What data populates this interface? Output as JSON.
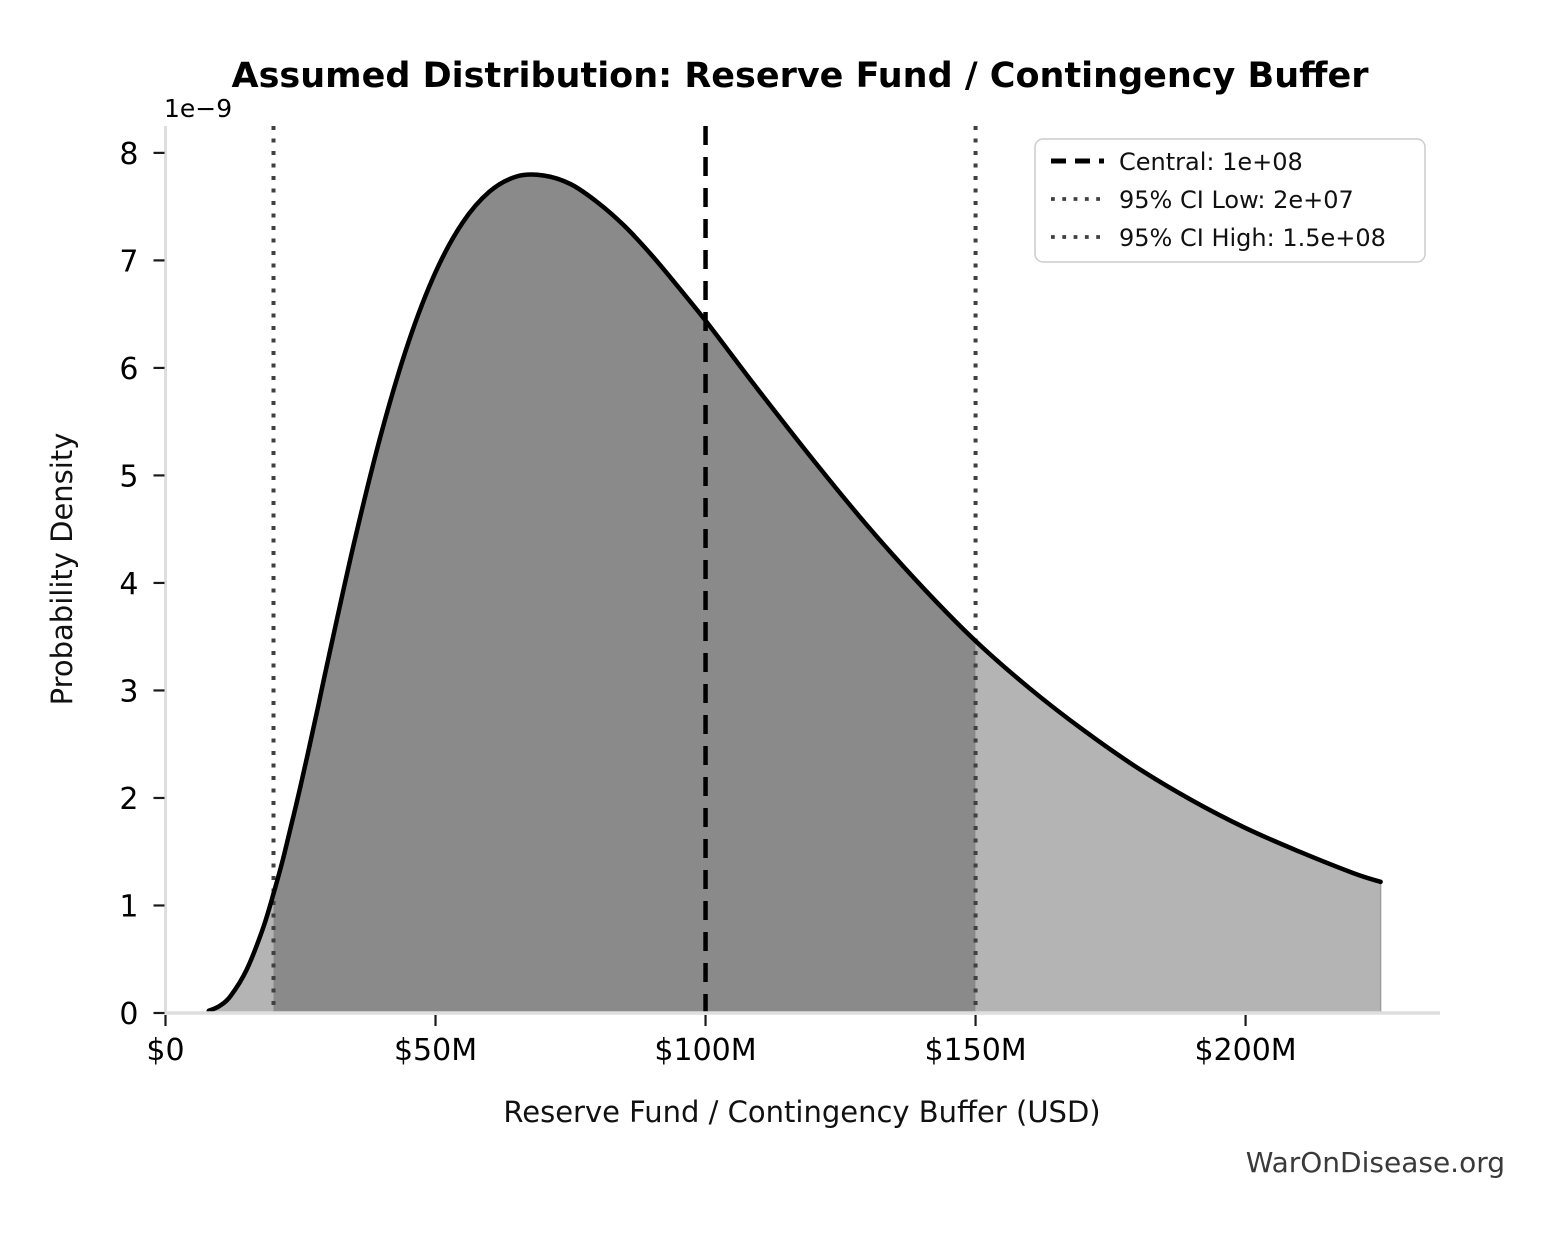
{
  "chart_data": {
    "type": "area",
    "title": "Assumed Distribution: Reserve Fund / Contingency Buffer",
    "xlabel": "Reserve Fund / Contingency Buffer (USD)",
    "ylabel": "Probability Density",
    "y_scale_offset_label": "1e−9",
    "watermark": "WarOnDisease.org",
    "grid": false,
    "legend_position": "upper right",
    "xlim_millions_usd": [
      0,
      236
    ],
    "ylim_density_1e9": [
      0,
      8.25
    ],
    "x_ticks": [
      {
        "value_millions_usd": 0,
        "label": "$0"
      },
      {
        "value_millions_usd": 50,
        "label": "$50M"
      },
      {
        "value_millions_usd": 100,
        "label": "$100M"
      },
      {
        "value_millions_usd": 150,
        "label": "$150M"
      },
      {
        "value_millions_usd": 200,
        "label": "$200M"
      }
    ],
    "y_ticks": [
      {
        "value_1e9": 0,
        "label": "0"
      },
      {
        "value_1e9": 1,
        "label": "1"
      },
      {
        "value_1e9": 2,
        "label": "2"
      },
      {
        "value_1e9": 3,
        "label": "3"
      },
      {
        "value_1e9": 4,
        "label": "4"
      },
      {
        "value_1e9": 5,
        "label": "5"
      },
      {
        "value_1e9": 6,
        "label": "6"
      },
      {
        "value_1e9": 7,
        "label": "7"
      },
      {
        "value_1e9": 8,
        "label": "8"
      }
    ],
    "legend": [
      {
        "label": "Central: 1e+08",
        "line_style": "dashed",
        "color": "#000000"
      },
      {
        "label": "95% CI Low: 2e+07",
        "line_style": "dotted",
        "color": "#404040"
      },
      {
        "label": "95% CI High: 1.5e+08",
        "line_style": "dotted",
        "color": "#404040"
      }
    ],
    "vlines": [
      {
        "name": "ci_low",
        "x_millions_usd": 20,
        "style": "dotted",
        "color": "#404040"
      },
      {
        "name": "ci_high",
        "x_millions_usd": 150,
        "style": "dotted",
        "color": "#404040"
      },
      {
        "name": "central",
        "x_millions_usd": 100,
        "style": "dashed",
        "color": "#000000"
      }
    ],
    "fills": {
      "ci_band_range_millions_usd": [
        20,
        150
      ],
      "ci_band_color": "#8a8a8a",
      "tail_color": "#b4b4b4"
    },
    "curve": {
      "name": "probability-density-curve",
      "color": "#000000",
      "x_millions_usd": [
        8,
        10,
        12,
        15,
        18,
        20,
        22,
        25,
        28,
        30,
        35,
        40,
        45,
        50,
        55,
        60,
        65,
        70,
        75,
        80,
        85,
        90,
        95,
        100,
        105,
        110,
        120,
        130,
        140,
        150,
        160,
        170,
        180,
        190,
        200,
        210,
        220,
        225
      ],
      "density_1e9": [
        0.02,
        0.065,
        0.155,
        0.4,
        0.78,
        1.11,
        1.48,
        2.11,
        2.79,
        3.26,
        4.39,
        5.4,
        6.24,
        6.89,
        7.35,
        7.64,
        7.78,
        7.79,
        7.71,
        7.54,
        7.32,
        7.05,
        6.75,
        6.44,
        6.11,
        5.78,
        5.14,
        4.53,
        3.97,
        3.46,
        3.02,
        2.63,
        2.28,
        1.98,
        1.72,
        1.5,
        1.3,
        1.22
      ]
    }
  }
}
